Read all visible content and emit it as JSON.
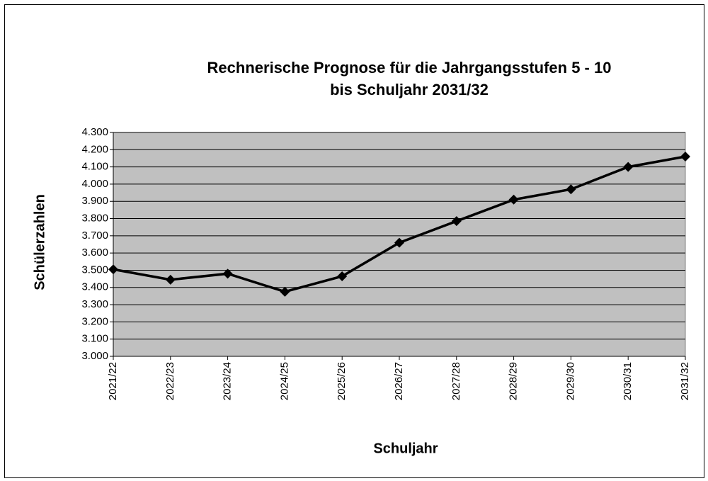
{
  "chart_data": {
    "type": "line",
    "title": [
      "Rechnerische Prognose für die Jahrgangsstufen 5 - 10",
      "bis Schuljahr 2031/32"
    ],
    "x_label": "Schuljahr",
    "y_label": "Schülerzahlen",
    "categories": [
      "2021/22",
      "2022/23",
      "2023/24",
      "2024/25",
      "2025/26",
      "2026/27",
      "2027/28",
      "2028/29",
      "2029/30",
      "2030/31",
      "2031/32"
    ],
    "series": [
      {
        "color": "#000000",
        "values": [
          3505,
          3445,
          3480,
          3375,
          3465,
          3660,
          3785,
          3910,
          3970,
          4100,
          4160
        ]
      }
    ],
    "ylim": [
      3000,
      4300
    ],
    "yticks": [
      {
        "value": 3000,
        "label": "3.000"
      },
      {
        "value": 3100,
        "label": "3.100"
      },
      {
        "value": 3200,
        "label": "3.200"
      },
      {
        "value": 3300,
        "label": "3.300"
      },
      {
        "value": 3400,
        "label": "3.400"
      },
      {
        "value": 3500,
        "label": "3.500"
      },
      {
        "value": 3600,
        "label": "3.600"
      },
      {
        "value": 3700,
        "label": "3.700"
      },
      {
        "value": 3800,
        "label": "3.800"
      },
      {
        "value": 3900,
        "label": "3.900"
      },
      {
        "value": 4000,
        "label": "4.000"
      },
      {
        "value": 4100,
        "label": "4.100"
      },
      {
        "value": 4200,
        "label": "4.200"
      },
      {
        "value": 4300,
        "label": "4.300"
      }
    ],
    "grid": true,
    "plot_background": "#c0c0c0"
  }
}
